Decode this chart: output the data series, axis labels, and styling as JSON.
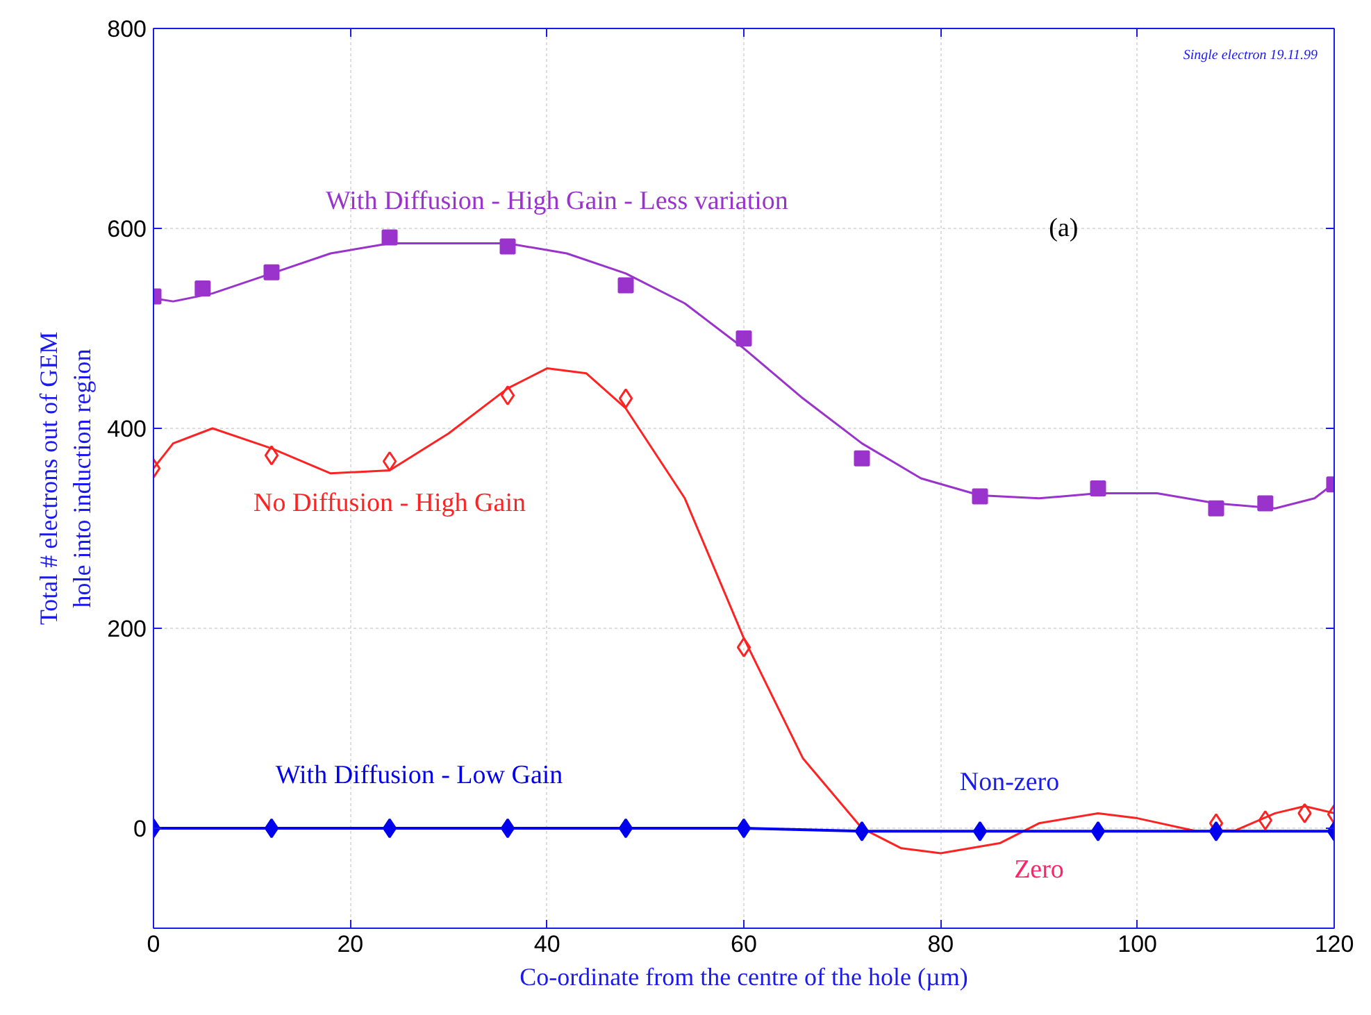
{
  "chart_data": {
    "type": "scatter",
    "xlabel": "Co-ordinate from the centre of the hole (µm)",
    "ylabel": "Total # electrons out of GEM\nhole into induction region",
    "xlim": [
      0,
      120
    ],
    "ylim": [
      -100,
      800
    ],
    "xticks": [
      0,
      20,
      40,
      60,
      80,
      100,
      120
    ],
    "yticks": [
      0,
      200,
      400,
      600,
      800
    ],
    "grid": true,
    "series": [
      {
        "type": "line",
        "color": "#9933cc",
        "marker": "none",
        "x": [
          0,
          2,
          6,
          12,
          18,
          24,
          36,
          42,
          48,
          54,
          60,
          66,
          72,
          78,
          84,
          90,
          96,
          102,
          108,
          114,
          118,
          120
        ],
        "values": [
          530,
          527,
          535,
          555,
          575,
          585,
          585,
          575,
          555,
          525,
          480,
          430,
          385,
          350,
          333,
          330,
          335,
          335,
          325,
          320,
          330,
          345
        ]
      },
      {
        "name": "With Diffusion - High Gain - Less variation",
        "color": "#9933cc",
        "marker": "square",
        "x": [
          0,
          5,
          12,
          24,
          36,
          48,
          60,
          72,
          84,
          96,
          108,
          113,
          120
        ],
        "values": [
          532,
          540,
          556,
          591,
          582,
          543,
          490,
          370,
          332,
          340,
          320,
          325,
          344
        ]
      },
      {
        "type": "line",
        "color": "#ff2222",
        "marker": "none",
        "x": [
          0,
          2,
          6,
          12,
          18,
          24,
          30,
          36,
          40,
          44,
          48,
          54,
          60,
          66,
          72,
          76,
          80,
          86,
          90,
          96,
          100,
          106,
          110,
          114,
          117,
          120
        ],
        "values": [
          360,
          385,
          400,
          380,
          355,
          358,
          395,
          440,
          460,
          455,
          420,
          330,
          190,
          70,
          0,
          -20,
          -25,
          -15,
          5,
          15,
          10,
          -3,
          -2,
          15,
          22,
          15
        ]
      },
      {
        "name": "No Diffusion - High Gain",
        "color": "#ff2222",
        "marker": "diamond_open",
        "x": [
          0,
          12,
          24,
          36,
          48,
          60,
          108,
          113,
          117,
          120
        ],
        "values": [
          360,
          373,
          367,
          433,
          430,
          181,
          5,
          8,
          15,
          14
        ]
      },
      {
        "type": "line",
        "name": "With Diffusion - Low Gain",
        "color": "#0000ee",
        "marker": "diamond",
        "x": [
          0,
          12,
          24,
          36,
          48,
          60,
          72,
          84,
          96,
          108,
          120
        ],
        "values": [
          0,
          0,
          0,
          0,
          0,
          0,
          -3,
          -3,
          -3,
          -3,
          -3
        ]
      }
    ],
    "annotations": [
      "Non-zero",
      "Zero",
      "(a)",
      "Single electron 19.11.99"
    ]
  }
}
